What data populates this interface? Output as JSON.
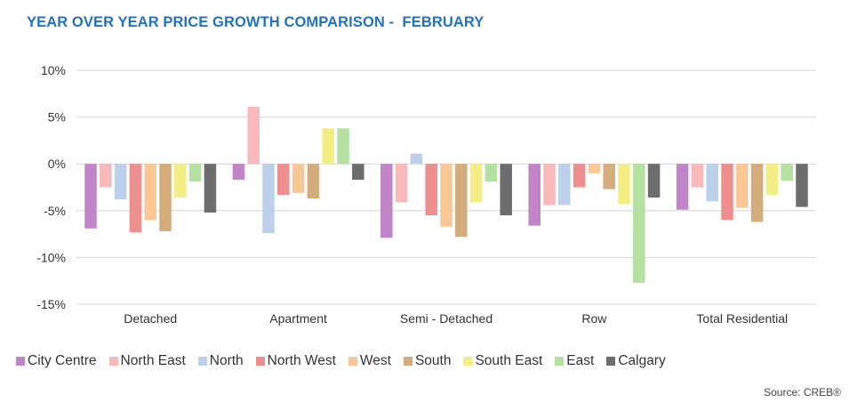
{
  "title": "YEAR OVER YEAR PRICE GROWTH COMPARISON -  FEBRUARY",
  "source": "Source: CREB®",
  "chart_data": {
    "type": "bar",
    "categories": [
      "Detached",
      "Apartment",
      "Semi - Detached",
      "Row",
      "Total Residential"
    ],
    "ylim": [
      -15,
      10
    ],
    "yticks": [
      10,
      5,
      0,
      -5,
      -10,
      -15
    ],
    "ytick_labels": [
      "10%",
      "5%",
      "0%",
      "-5%",
      "-10%",
      "-15%"
    ],
    "grid": true,
    "legend_position": "bottom",
    "series": [
      {
        "name": "City Centre",
        "color": "#c184c9",
        "values": [
          -6.9,
          -1.7,
          -7.9,
          -6.6,
          -4.9
        ]
      },
      {
        "name": "North East",
        "color": "#f9b9bb",
        "values": [
          -2.5,
          6.1,
          -4.1,
          -4.4,
          -2.5
        ]
      },
      {
        "name": "North",
        "color": "#bcd0ec",
        "values": [
          -3.8,
          -7.4,
          1.1,
          -4.4,
          -4.0
        ]
      },
      {
        "name": "North West",
        "color": "#ef8e8e",
        "values": [
          -7.3,
          -3.3,
          -5.5,
          -2.5,
          -6.0
        ]
      },
      {
        "name": "West",
        "color": "#f9c795",
        "values": [
          -6.0,
          -3.1,
          -6.7,
          -1.0,
          -4.7
        ]
      },
      {
        "name": "South",
        "color": "#d4ac7c",
        "values": [
          -7.2,
          -3.7,
          -7.8,
          -2.7,
          -6.2
        ]
      },
      {
        "name": "South East",
        "color": "#f3ee84",
        "values": [
          -3.6,
          3.8,
          -4.1,
          -4.3,
          -3.3
        ]
      },
      {
        "name": "East",
        "color": "#b4e0a0",
        "values": [
          -1.9,
          3.8,
          -1.9,
          -12.7,
          -1.8
        ]
      },
      {
        "name": "Calgary",
        "color": "#6d6d6d",
        "values": [
          -5.2,
          -1.7,
          -5.5,
          -3.6,
          -4.6
        ]
      }
    ]
  }
}
